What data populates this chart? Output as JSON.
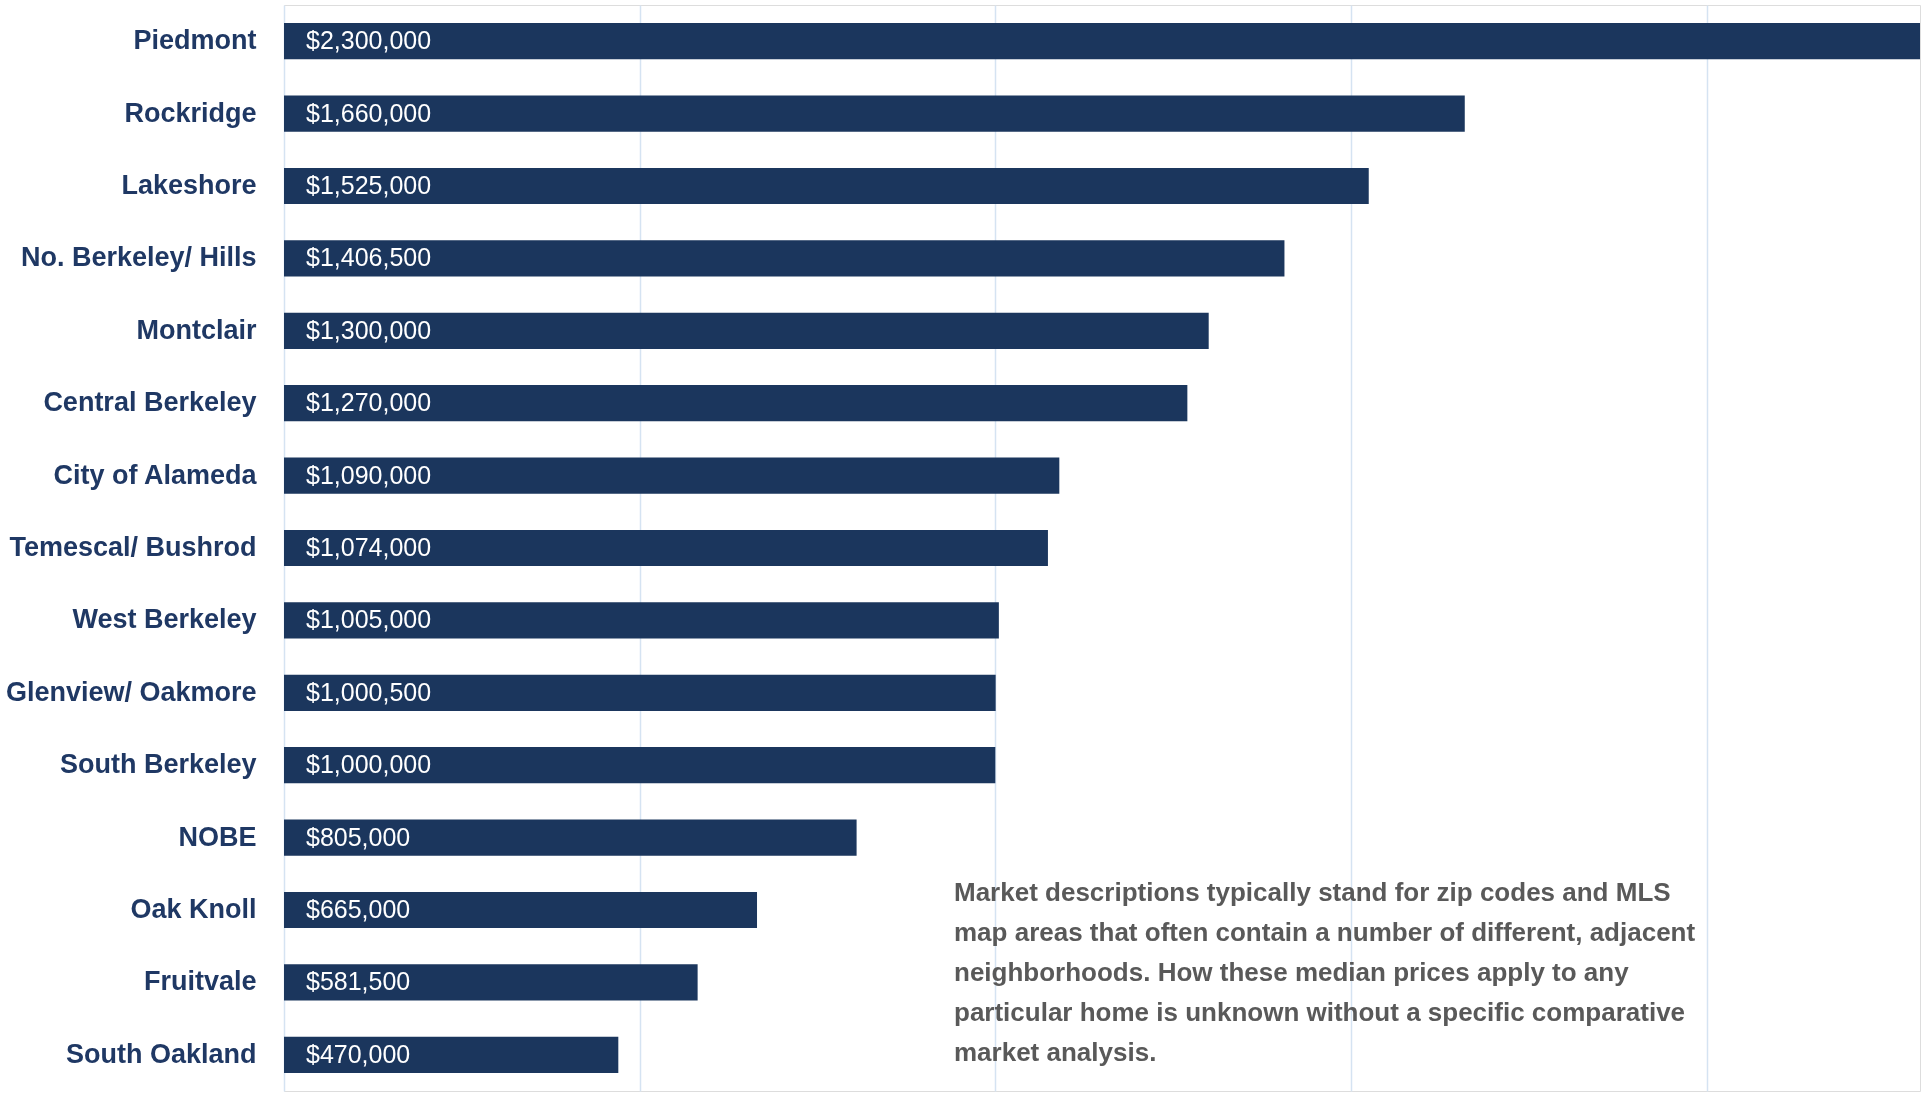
{
  "chart_data": {
    "type": "bar",
    "orientation": "horizontal",
    "categories": [
      "Piedmont",
      "Rockridge",
      "Lakeshore",
      "No. Berkeley/ Hills",
      "Montclair",
      "Central Berkeley",
      "City of Alameda",
      "Temescal/ Bushrod",
      "West Berkeley",
      "Glenview/ Oakmore",
      "South Berkeley",
      "NOBE",
      "Oak Knoll",
      "Fruitvale",
      "South Oakland"
    ],
    "values": [
      2300000,
      1660000,
      1525000,
      1406500,
      1300000,
      1270000,
      1090000,
      1074000,
      1005000,
      1000500,
      1000000,
      805000,
      665000,
      581500,
      470000
    ],
    "value_labels": [
      "$2,300,000",
      "$1,660,000",
      "$1,525,000",
      "$1,406,500",
      "$1,300,000",
      "$1,270,000",
      "$1,090,000",
      "$1,074,000",
      "$1,005,000",
      "$1,000,500",
      "$1,000,000",
      "$805,000",
      "$665,000",
      "$581,500",
      "$470,000"
    ],
    "color": "#1b365d",
    "xlim": [
      0,
      2300000
    ],
    "xticks": [
      {
        "value": 0,
        "label": null
      },
      {
        "value": 500000,
        "label": null
      },
      {
        "value": 1000000,
        "label": null
      },
      {
        "value": 1500000,
        "label": null
      },
      {
        "value": 2000000,
        "label": null
      }
    ],
    "grid": "x",
    "tick_labels": "y",
    "annotations": [
      "Market descriptions typically stand for zip codes and MLS map areas that often contain a number of different, adjacent neighborhoods. How these median prices apply to any particular home is unknown without a specific comparative market analysis."
    ]
  }
}
